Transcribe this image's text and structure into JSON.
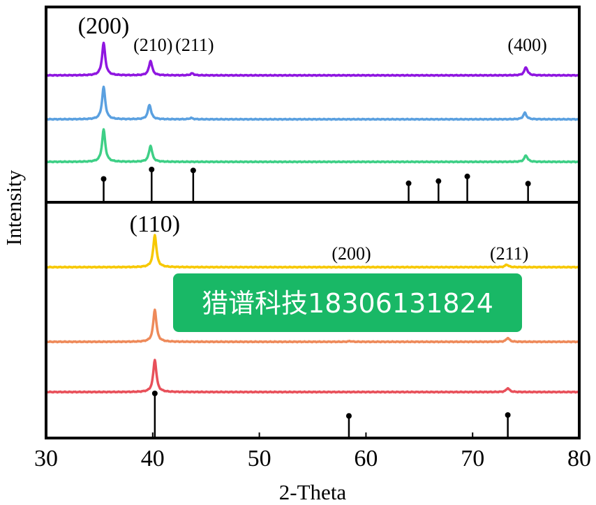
{
  "chart_data": {
    "type": "line",
    "xlabel": "2-Theta",
    "ylabel": "Intensity",
    "xlim": [
      30,
      80
    ],
    "x_ticks": [
      "30",
      "40",
      "50",
      "60",
      "70",
      "80"
    ],
    "top_panel": {
      "series": [
        {
          "color": "#8f16e0",
          "peaks": [
            {
              "x": 35.4,
              "h": 1.0
            },
            {
              "x": 39.8,
              "h": 0.45
            },
            {
              "x": 43.7,
              "h": 0.06
            },
            {
              "x": 75.0,
              "h": 0.25
            }
          ]
        },
        {
          "color": "#5aa0e0",
          "peaks": [
            {
              "x": 35.4,
              "h": 1.0
            },
            {
              "x": 39.7,
              "h": 0.45
            },
            {
              "x": 43.6,
              "h": 0.04
            },
            {
              "x": 74.9,
              "h": 0.2
            }
          ]
        },
        {
          "color": "#3ecf86",
          "peaks": [
            {
              "x": 35.4,
              "h": 1.0
            },
            {
              "x": 39.8,
              "h": 0.5
            },
            {
              "x": 75.0,
              "h": 0.2
            }
          ]
        }
      ],
      "reference_lines": [
        {
          "x": 35.4,
          "rel": 0.7
        },
        {
          "x": 39.9,
          "rel": 1.0
        },
        {
          "x": 43.8,
          "rel": 0.97
        },
        {
          "x": 64.0,
          "rel": 0.56
        },
        {
          "x": 66.8,
          "rel": 0.63
        },
        {
          "x": 69.5,
          "rel": 0.78
        },
        {
          "x": 75.2,
          "rel": 0.55
        }
      ],
      "peak_labels": [
        {
          "text": "(200)",
          "x": 35.4,
          "size": "large"
        },
        {
          "text": "(210)",
          "x": 39.9,
          "size": "small"
        },
        {
          "text": "(211)",
          "x": 43.8,
          "size": "small"
        },
        {
          "text": "(400)",
          "x": 75.0,
          "size": "small"
        }
      ]
    },
    "bottom_panel": {
      "series": [
        {
          "color": "#f7c800",
          "peaks": [
            {
              "x": 40.2,
              "h": 1.0
            },
            {
              "x": 73.2,
              "h": 0.08
            }
          ]
        },
        {
          "color": "#ee8a5a",
          "peaks": [
            {
              "x": 40.2,
              "h": 1.0
            },
            {
              "x": 58.5,
              "h": 0.02
            },
            {
              "x": 73.3,
              "h": 0.12
            }
          ]
        },
        {
          "color": "#e8505a",
          "peaks": [
            {
              "x": 40.2,
              "h": 1.0
            },
            {
              "x": 73.3,
              "h": 0.12
            }
          ]
        }
      ],
      "reference_lines": [
        {
          "x": 40.2,
          "rel": 1.0
        },
        {
          "x": 58.4,
          "rel": 0.48
        },
        {
          "x": 73.3,
          "rel": 0.5
        }
      ],
      "peak_labels": [
        {
          "text": "(110)",
          "x": 40.2,
          "size": "large"
        },
        {
          "text": "(200)",
          "x": 58.5,
          "size": "small"
        },
        {
          "text": "(211)",
          "x": 73.3,
          "size": "small"
        }
      ]
    }
  },
  "watermark": {
    "text": "猎谱科技18306131824",
    "color": "#19b866"
  }
}
